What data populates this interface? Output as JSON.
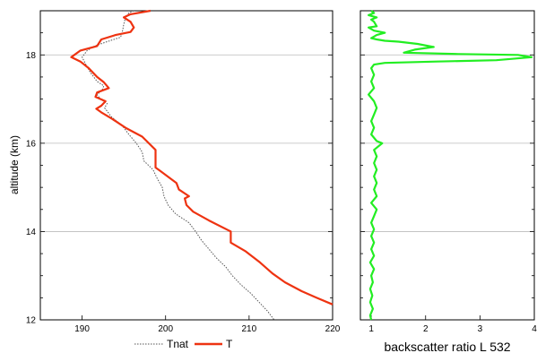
{
  "chart_data": [
    {
      "type": "line",
      "title": "",
      "xlabel": "",
      "ylabel": "altitude (km)",
      "xlim": [
        185,
        220
      ],
      "ylim": [
        12,
        19
      ],
      "x_ticks": [
        190,
        200,
        210,
        220
      ],
      "y_ticks": [
        12,
        14,
        16,
        18
      ],
      "grid": "horizontal",
      "legend": "bottom",
      "series": [
        {
          "name": "Tnat",
          "color": "#555555",
          "style": "dotted",
          "points": [
            [
              196.2,
              19.0
            ],
            [
              195.6,
              18.95
            ],
            [
              195.2,
              18.85
            ],
            [
              195.0,
              18.7
            ],
            [
              194.8,
              18.5
            ],
            [
              194.6,
              18.4
            ],
            [
              193.0,
              18.3
            ],
            [
              191.5,
              18.2
            ],
            [
              190.6,
              18.1
            ],
            [
              190.0,
              17.95
            ],
            [
              190.4,
              17.8
            ],
            [
              191.0,
              17.6
            ],
            [
              191.8,
              17.4
            ],
            [
              192.6,
              17.3
            ],
            [
              192.4,
              17.2
            ],
            [
              191.8,
              17.1
            ],
            [
              192.2,
              17.0
            ],
            [
              193.0,
              16.9
            ],
            [
              192.7,
              16.8
            ],
            [
              193.5,
              16.6
            ],
            [
              194.8,
              16.4
            ],
            [
              195.6,
              16.2
            ],
            [
              196.5,
              16.0
            ],
            [
              197.2,
              15.8
            ],
            [
              197.4,
              15.6
            ],
            [
              198.5,
              15.4
            ],
            [
              199.0,
              15.2
            ],
            [
              199.6,
              15.0
            ],
            [
              199.8,
              14.8
            ],
            [
              200.3,
              14.6
            ],
            [
              201.2,
              14.4
            ],
            [
              202.8,
              14.2
            ],
            [
              203.6,
              14.0
            ],
            [
              204.3,
              13.8
            ],
            [
              205.2,
              13.6
            ],
            [
              206.1,
              13.4
            ],
            [
              207.2,
              13.2
            ],
            [
              208.0,
              13.0
            ],
            [
              209.0,
              12.8
            ],
            [
              210.2,
              12.6
            ],
            [
              211.2,
              12.4
            ],
            [
              212.2,
              12.2
            ],
            [
              213.0,
              12.0
            ]
          ]
        },
        {
          "name": "T",
          "color": "#ee3311",
          "style": "solid",
          "points": [
            [
              198.2,
              19.0
            ],
            [
              195.8,
              18.92
            ],
            [
              195.0,
              18.85
            ],
            [
              195.8,
              18.75
            ],
            [
              196.2,
              18.62
            ],
            [
              195.8,
              18.52
            ],
            [
              194.0,
              18.45
            ],
            [
              192.3,
              18.35
            ],
            [
              191.8,
              18.2
            ],
            [
              189.8,
              18.1
            ],
            [
              188.7,
              17.95
            ],
            [
              189.8,
              17.85
            ],
            [
              190.8,
              17.7
            ],
            [
              191.8,
              17.5
            ],
            [
              192.6,
              17.38
            ],
            [
              193.2,
              17.25
            ],
            [
              191.8,
              17.15
            ],
            [
              191.6,
              17.05
            ],
            [
              192.8,
              16.95
            ],
            [
              192.3,
              16.85
            ],
            [
              191.7,
              16.78
            ],
            [
              192.3,
              16.7
            ],
            [
              193.6,
              16.55
            ],
            [
              195.2,
              16.35
            ],
            [
              197.2,
              16.15
            ],
            [
              198.8,
              15.85
            ],
            [
              198.8,
              15.45
            ],
            [
              199.3,
              15.38
            ],
            [
              201.3,
              15.1
            ],
            [
              201.6,
              14.95
            ],
            [
              202.8,
              14.8
            ],
            [
              202.3,
              14.75
            ],
            [
              202.5,
              14.6
            ],
            [
              203.3,
              14.45
            ],
            [
              205.2,
              14.25
            ],
            [
              207.8,
              14.0
            ],
            [
              207.8,
              13.75
            ],
            [
              209.6,
              13.55
            ],
            [
              211.3,
              13.3
            ],
            [
              212.8,
              13.05
            ],
            [
              214.3,
              12.85
            ],
            [
              216.3,
              12.65
            ],
            [
              218.1,
              12.5
            ],
            [
              220.0,
              12.35
            ]
          ]
        }
      ]
    },
    {
      "type": "line",
      "title": "",
      "xlabel": "backscatter ratio L 532",
      "ylabel": "",
      "xlim": [
        0.8,
        4
      ],
      "ylim": [
        12,
        19
      ],
      "x_ticks": [
        1,
        2,
        3,
        4
      ],
      "y_ticks": [
        12,
        14,
        16,
        18
      ],
      "grid": "horizontal",
      "legend": "none",
      "series": [
        {
          "name": "",
          "color": "#22ee22",
          "style": "solid",
          "points": [
            [
              1.0,
              19.0
            ],
            [
              1.05,
              18.95
            ],
            [
              0.95,
              18.9
            ],
            [
              1.1,
              18.85
            ],
            [
              1.0,
              18.8
            ],
            [
              1.05,
              18.75
            ],
            [
              1.1,
              18.65
            ],
            [
              0.95,
              18.62
            ],
            [
              1.05,
              18.55
            ],
            [
              1.25,
              18.5
            ],
            [
              1.1,
              18.45
            ],
            [
              1.0,
              18.38
            ],
            [
              1.1,
              18.35
            ],
            [
              1.25,
              18.32
            ],
            [
              1.5,
              18.3
            ],
            [
              1.85,
              18.25
            ],
            [
              2.15,
              18.18
            ],
            [
              1.8,
              18.12
            ],
            [
              1.6,
              18.05
            ],
            [
              2.6,
              18.02
            ],
            [
              3.7,
              18.0
            ],
            [
              3.95,
              17.95
            ],
            [
              3.3,
              17.88
            ],
            [
              2.2,
              17.85
            ],
            [
              1.25,
              17.82
            ],
            [
              1.05,
              17.78
            ],
            [
              1.0,
              17.7
            ],
            [
              1.05,
              17.55
            ],
            [
              1.0,
              17.4
            ],
            [
              1.05,
              17.25
            ],
            [
              0.95,
              17.1
            ],
            [
              1.05,
              16.95
            ],
            [
              1.1,
              16.8
            ],
            [
              1.05,
              16.65
            ],
            [
              1.0,
              16.5
            ],
            [
              1.05,
              16.35
            ],
            [
              1.0,
              16.2
            ],
            [
              1.1,
              16.05
            ],
            [
              1.2,
              16.0
            ],
            [
              1.05,
              15.85
            ],
            [
              1.1,
              15.7
            ],
            [
              1.05,
              15.55
            ],
            [
              1.1,
              15.4
            ],
            [
              1.05,
              15.25
            ],
            [
              1.1,
              15.1
            ],
            [
              1.05,
              14.95
            ],
            [
              1.1,
              14.8
            ],
            [
              1.0,
              14.65
            ],
            [
              1.1,
              14.5
            ],
            [
              1.05,
              14.35
            ],
            [
              1.0,
              14.2
            ],
            [
              1.05,
              14.05
            ],
            [
              1.0,
              13.9
            ],
            [
              1.05,
              13.75
            ],
            [
              1.0,
              13.6
            ],
            [
              1.05,
              13.45
            ],
            [
              0.98,
              13.3
            ],
            [
              1.05,
              13.15
            ],
            [
              1.0,
              13.0
            ],
            [
              1.03,
              12.85
            ],
            [
              0.98,
              12.7
            ],
            [
              1.02,
              12.55
            ],
            [
              0.98,
              12.4
            ],
            [
              1.03,
              12.25
            ],
            [
              0.98,
              12.1
            ],
            [
              1.0,
              12.0
            ]
          ]
        }
      ]
    }
  ]
}
